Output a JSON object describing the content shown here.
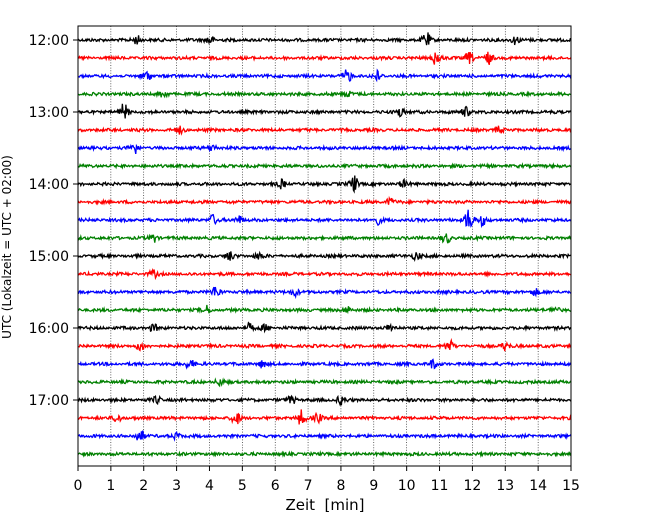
{
  "chart_data": {
    "type": "line",
    "title": "",
    "xlabel": "Zeit  [min]",
    "ylabel": "UTC (Lokalzeit = UTC + 02:00)",
    "xlim": [
      0,
      15
    ],
    "x_ticks": [
      0,
      1,
      2,
      3,
      4,
      5,
      6,
      7,
      8,
      9,
      10,
      11,
      12,
      13,
      14,
      15
    ],
    "y_tick_labels": [
      "12:00",
      "13:00",
      "14:00",
      "15:00",
      "16:00",
      "17:00"
    ],
    "grid": {
      "x": true,
      "y": false
    },
    "color_cycle": [
      "#000000",
      "#ff0000",
      "#0000ff",
      "#008000"
    ],
    "traces": [
      {
        "start": "12:00",
        "bursts": [
          [
            1.8,
            0.5
          ],
          [
            4.0,
            0.6
          ],
          [
            10.6,
            0.9
          ],
          [
            13.3,
            0.5
          ]
        ]
      },
      {
        "start": "12:15",
        "bursts": [
          [
            10.9,
            1.0
          ],
          [
            11.9,
            0.7
          ],
          [
            12.5,
            0.7
          ]
        ]
      },
      {
        "start": "12:30",
        "bursts": [
          [
            2.1,
            0.6
          ],
          [
            8.2,
            0.8
          ],
          [
            9.1,
            0.6
          ]
        ]
      },
      {
        "start": "12:45",
        "bursts": [
          [
            2.6,
            0.4
          ],
          [
            8.2,
            0.4
          ]
        ]
      },
      {
        "start": "13:00",
        "bursts": [
          [
            1.4,
            1.0
          ],
          [
            9.8,
            0.6
          ],
          [
            11.8,
            0.6
          ]
        ]
      },
      {
        "start": "13:15",
        "bursts": [
          [
            3.1,
            0.4
          ],
          [
            12.8,
            0.4
          ]
        ]
      },
      {
        "start": "13:30",
        "bursts": [
          [
            1.7,
            0.8
          ],
          [
            4.1,
            0.4
          ]
        ]
      },
      {
        "start": "13:45",
        "bursts": []
      },
      {
        "start": "14:00",
        "bursts": [
          [
            6.2,
            0.5
          ],
          [
            8.4,
            1.0
          ],
          [
            9.9,
            0.4
          ]
        ]
      },
      {
        "start": "14:15",
        "bursts": [
          [
            9.5,
            0.4
          ]
        ]
      },
      {
        "start": "14:30",
        "bursts": [
          [
            4.1,
            0.6
          ],
          [
            4.9,
            0.5
          ],
          [
            9.1,
            0.5
          ],
          [
            11.9,
            1.5
          ],
          [
            12.3,
            0.6
          ]
        ]
      },
      {
        "start": "14:45",
        "bursts": [
          [
            2.3,
            0.5
          ],
          [
            11.2,
            0.6
          ]
        ]
      },
      {
        "start": "15:00",
        "bursts": [
          [
            4.6,
            0.6
          ],
          [
            5.5,
            0.4
          ],
          [
            10.3,
            0.5
          ]
        ]
      },
      {
        "start": "15:15",
        "bursts": [
          [
            2.3,
            0.4
          ]
        ]
      },
      {
        "start": "15:30",
        "bursts": [
          [
            4.2,
            0.7
          ],
          [
            6.6,
            0.5
          ],
          [
            13.9,
            0.4
          ]
        ]
      },
      {
        "start": "15:45",
        "bursts": [
          [
            3.9,
            0.5
          ],
          [
            8.2,
            0.4
          ],
          [
            14.5,
            0.4
          ]
        ]
      },
      {
        "start": "16:00",
        "bursts": [
          [
            2.3,
            0.4
          ],
          [
            5.2,
            0.5
          ],
          [
            5.7,
            0.4
          ],
          [
            9.5,
            0.4
          ]
        ]
      },
      {
        "start": "16:15",
        "bursts": [
          [
            1.9,
            0.5
          ],
          [
            11.3,
            0.7
          ],
          [
            13.0,
            0.5
          ]
        ]
      },
      {
        "start": "16:30",
        "bursts": [
          [
            3.4,
            0.6
          ],
          [
            5.6,
            0.4
          ],
          [
            10.8,
            0.5
          ]
        ]
      },
      {
        "start": "16:45",
        "bursts": [
          [
            4.3,
            0.4
          ]
        ]
      },
      {
        "start": "17:00",
        "bursts": [
          [
            2.4,
            0.4
          ],
          [
            6.5,
            0.5
          ],
          [
            8.0,
            0.5
          ]
        ]
      },
      {
        "start": "17:15",
        "bursts": [
          [
            1.2,
            0.5
          ],
          [
            4.8,
            0.8
          ],
          [
            6.8,
            0.9
          ],
          [
            7.3,
            0.6
          ]
        ]
      },
      {
        "start": "17:30",
        "bursts": [
          [
            1.9,
            0.8
          ],
          [
            3.0,
            0.4
          ]
        ]
      },
      {
        "start": "17:45",
        "bursts": []
      }
    ]
  }
}
